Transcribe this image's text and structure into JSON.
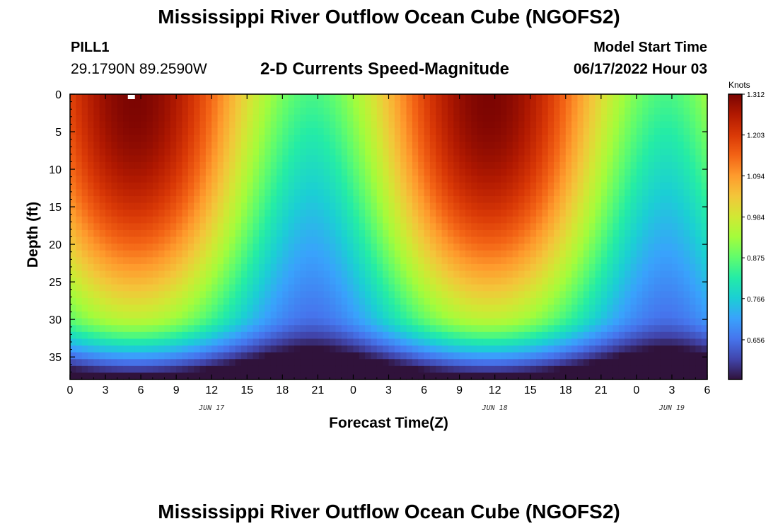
{
  "header": {
    "title": "Mississippi River Outflow Ocean Cube (NGOFS2)",
    "station": "PILL1",
    "coordinates": "29.1790N  89.2590W",
    "subtitle": "2-D Currents Speed-Magnitude",
    "model_start_label": "Model Start Time",
    "model_start_value": "06/17/2022 Hour 03"
  },
  "footer": {
    "title": "Mississippi River Outflow Ocean Cube (NGOFS2)"
  },
  "chart_data": {
    "type": "heatmap",
    "title": "2-D Currents Speed-Magnitude",
    "xlabel": "Forecast Time(Z)",
    "ylabel": "Depth (ft)",
    "x_tick_labels": [
      "0",
      "3",
      "6",
      "9",
      "12",
      "15",
      "18",
      "21",
      "0",
      "3",
      "6",
      "9",
      "12",
      "15",
      "18",
      "21",
      "0",
      "3",
      "6"
    ],
    "x_range_hours": [
      0,
      54
    ],
    "date_labels": [
      {
        "label": "JUN 17",
        "hour": 12
      },
      {
        "label": "JUN 18",
        "hour": 36
      },
      {
        "label": "JUN 19",
        "hour": 51
      }
    ],
    "y_tick_labels": [
      "0",
      "5",
      "10",
      "15",
      "20",
      "25",
      "30",
      "35"
    ],
    "ylim": [
      38,
      0
    ],
    "colorbar": {
      "units": "Knots",
      "min": 0.55,
      "max": 1.312,
      "tick_labels": [
        "1.312",
        "1.203",
        "1.094",
        "0.984",
        "0.875",
        "0.766",
        "0.656"
      ],
      "colormap": [
        "#30123b",
        "#4145ab",
        "#4675ed",
        "#39a2fc",
        "#1bcfd4",
        "#24eca6",
        "#61fc6c",
        "#a4fc3b",
        "#d1e834",
        "#f3c63a",
        "#fe9b2d",
        "#f36315",
        "#d93806",
        "#b11901",
        "#7a0402"
      ]
    },
    "field_description": {
      "surface_peak_hours": [
        5.5,
        35.5
      ],
      "surface_low_hours": [
        19.5,
        48.5
      ],
      "peak_speed_knots": 1.31,
      "low_speed_knots": 0.6
    }
  }
}
